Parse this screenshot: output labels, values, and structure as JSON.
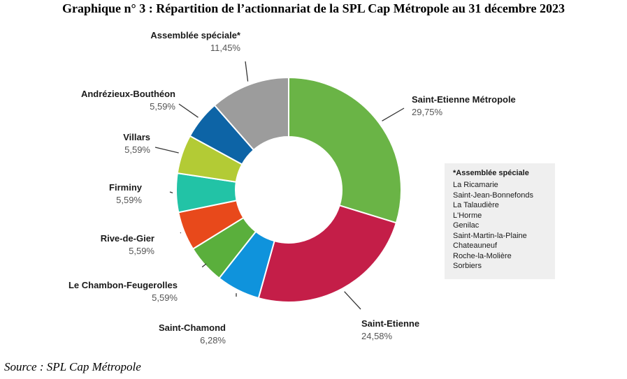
{
  "title": "Graphique n° 3 : Répartition de l’actionnariat de la SPL Cap Métropole au 31 décembre 2023",
  "source": "Source : SPL Cap Métropole",
  "chart_data": {
    "type": "pie",
    "donut": true,
    "slices": [
      {
        "label": "Saint-Etienne Métropole",
        "value_text": "29,75%",
        "value": 29.75,
        "color": "#6ab446"
      },
      {
        "label": "Saint-Etienne",
        "value_text": "24,58%",
        "value": 24.58,
        "color": "#c41e48"
      },
      {
        "label": "Saint-Chamond",
        "value_text": "6,28%",
        "value": 6.28,
        "color": "#0f93dc"
      },
      {
        "label": "Le Chambon-Feugerolles",
        "value_text": "5,59%",
        "value": 5.59,
        "color": "#5aaf3c"
      },
      {
        "label": "Rive-de-Gier",
        "value_text": "5,59%",
        "value": 5.59,
        "color": "#e8491b"
      },
      {
        "label": "Firminy",
        "value_text": "5,59%",
        "value": 5.59,
        "color": "#22c3a6"
      },
      {
        "label": "Villars",
        "value_text": "5,59%",
        "value": 5.59,
        "color": "#b3cb35"
      },
      {
        "label": "Andrézieux-Bouthéon",
        "value_text": "5,59%",
        "value": 5.59,
        "color": "#0d64a6"
      },
      {
        "label": "Assemblée spéciale*",
        "value_text": "11,45%",
        "value": 11.45,
        "color": "#9c9c9c"
      }
    ]
  },
  "note": {
    "title": "*Assemblée spéciale",
    "items": [
      "La Ricamarie",
      "Saint-Jean-Bonnefonds",
      "La Talaudière",
      "L'Horme",
      "Genilac",
      "Saint-Martin-la-Plaine",
      "Chateauneuf",
      "Roche-la-Molière",
      "Sorbiers"
    ]
  }
}
